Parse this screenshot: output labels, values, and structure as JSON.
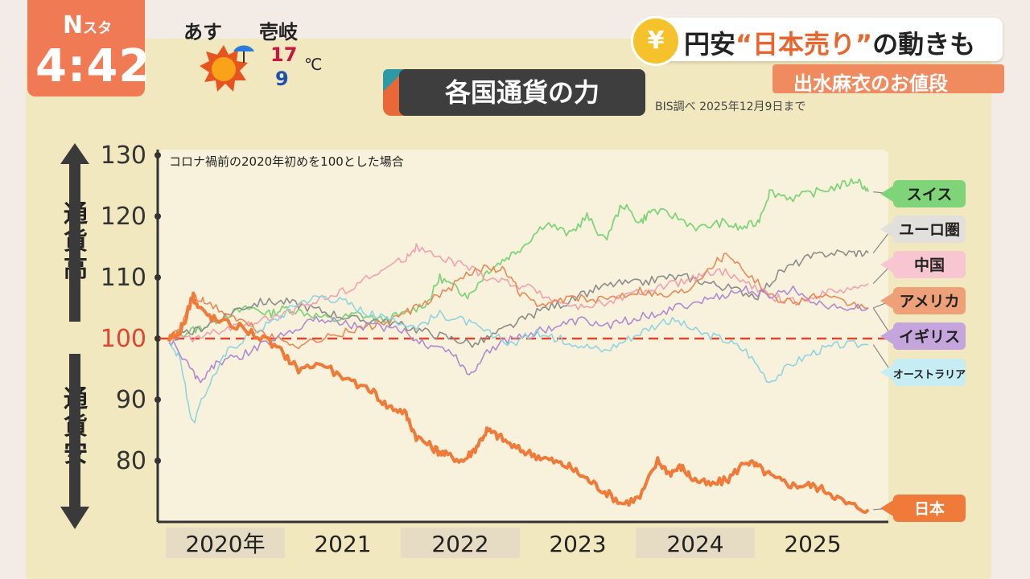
{
  "logo": {
    "brand": "N",
    "brand_sub": "スタ",
    "time": "4:42"
  },
  "weather": {
    "day": "あす",
    "place": "壱岐",
    "high": "17",
    "low": "9",
    "unit": "℃",
    "icon": "sun-with-umbrella-icon"
  },
  "headline": {
    "icon": "yen-coin-icon",
    "text_pre": "円安",
    "text_em": "“日本売り”",
    "text_post": "の動きも"
  },
  "segment": {
    "label": "出水麻衣のお値段"
  },
  "chart_title": "各国通貨の力",
  "source": "BIS調べ 2025年12月9日まで",
  "note": "コロナ禍前の2020年初めを100とした場合",
  "up_label": "通貨高",
  "down_label": "通貨安",
  "colors": {
    "accent": "#e86838",
    "baseline": "#e0452f"
  },
  "chart_data": {
    "type": "line",
    "title": "各国通貨の力",
    "ylim": [
      71,
      131
    ],
    "y_ticks": [
      80,
      90,
      100,
      110,
      120,
      130
    ],
    "baseline": 100,
    "x_range": [
      2020.0,
      2026.0
    ],
    "x_ticks": [
      "2020年",
      "2021",
      "2022",
      "2023",
      "2024",
      "2025"
    ],
    "series": [
      {
        "name": "スイス",
        "color": "#7fd47a",
        "width": 1.8,
        "x": [
          2020.0,
          2020.15,
          2020.3,
          2020.5,
          2020.7,
          2020.85,
          2021.0,
          2021.2,
          2021.4,
          2021.6,
          2021.8,
          2022.0,
          2022.2,
          2022.3,
          2022.45,
          2022.55,
          2022.7,
          2022.85,
          2023.0,
          2023.2,
          2023.4,
          2023.55,
          2023.7,
          2023.85,
          2024.0,
          2024.1,
          2024.3,
          2024.5,
          2024.7,
          2024.85,
          2025.0,
          2025.1,
          2025.3,
          2025.5,
          2025.7,
          2025.85,
          2025.94
        ],
        "values": [
          100,
          101,
          102,
          104,
          105,
          104,
          105,
          104,
          103,
          104,
          103,
          104,
          106,
          110,
          108,
          107,
          111,
          113,
          115,
          119,
          117,
          120,
          116,
          122,
          119,
          121,
          120,
          118,
          119,
          118,
          119,
          124,
          123,
          124,
          125,
          126,
          124
        ]
      },
      {
        "name": "ユーロ圏",
        "color": "#8c8c8c",
        "width": 1.6,
        "x": [
          2020.0,
          2020.2,
          2020.4,
          2020.6,
          2020.8,
          2021.0,
          2021.2,
          2021.4,
          2021.6,
          2021.8,
          2022.0,
          2022.2,
          2022.4,
          2022.6,
          2022.8,
          2023.0,
          2023.2,
          2023.4,
          2023.6,
          2023.8,
          2024.0,
          2024.2,
          2024.4,
          2024.6,
          2024.8,
          2025.0,
          2025.2,
          2025.4,
          2025.6,
          2025.8,
          2025.94
        ],
        "values": [
          100,
          101,
          103,
          105,
          106,
          106,
          105,
          104,
          103,
          103,
          102,
          101,
          100,
          99,
          101,
          103,
          105,
          106,
          108,
          109,
          109,
          110,
          110,
          109,
          108,
          107,
          111,
          113,
          114,
          114,
          114
        ]
      },
      {
        "name": "中国",
        "color": "#f2a1b0",
        "width": 1.6,
        "x": [
          2020.0,
          2020.2,
          2020.4,
          2020.6,
          2020.8,
          2021.0,
          2021.2,
          2021.4,
          2021.6,
          2021.8,
          2022.0,
          2022.1,
          2022.3,
          2022.5,
          2022.7,
          2022.9,
          2023.1,
          2023.3,
          2023.5,
          2023.7,
          2023.9,
          2024.1,
          2024.3,
          2024.5,
          2024.7,
          2024.9,
          2025.1,
          2025.3,
          2025.5,
          2025.7,
          2025.94
        ],
        "values": [
          100,
          100,
          101,
          102,
          103,
          104,
          106,
          107,
          109,
          111,
          113,
          115,
          113,
          112,
          110,
          109,
          108,
          106,
          105,
          106,
          107,
          108,
          109,
          110,
          111,
          109,
          107,
          106,
          107,
          108,
          109
        ]
      },
      {
        "name": "アメリカ",
        "color": "#e88a57",
        "width": 1.6,
        "x": [
          2020.0,
          2020.1,
          2020.2,
          2020.3,
          2020.5,
          2020.7,
          2020.9,
          2021.1,
          2021.3,
          2021.5,
          2021.7,
          2021.9,
          2022.1,
          2022.3,
          2022.5,
          2022.7,
          2022.85,
          2023.0,
          2023.2,
          2023.4,
          2023.6,
          2023.8,
          2024.0,
          2024.2,
          2024.4,
          2024.6,
          2024.75,
          2024.9,
          2025.1,
          2025.3,
          2025.5,
          2025.7,
          2025.94
        ],
        "values": [
          100,
          102,
          107,
          106,
          104,
          102,
          100,
          99,
          100,
          101,
          102,
          103,
          105,
          107,
          110,
          112,
          111,
          107,
          105,
          107,
          106,
          107,
          108,
          107,
          108,
          112,
          114,
          111,
          107,
          106,
          107,
          106,
          105
        ]
      },
      {
        "name": "イギリス",
        "color": "#b08ad0",
        "width": 1.6,
        "x": [
          2020.0,
          2020.15,
          2020.25,
          2020.4,
          2020.6,
          2020.8,
          2021.0,
          2021.2,
          2021.4,
          2021.6,
          2021.8,
          2022.0,
          2022.2,
          2022.4,
          2022.55,
          2022.7,
          2022.9,
          2023.1,
          2023.3,
          2023.5,
          2023.7,
          2023.9,
          2024.1,
          2024.3,
          2024.5,
          2024.7,
          2024.9,
          2025.1,
          2025.3,
          2025.5,
          2025.7,
          2025.94
        ],
        "values": [
          100,
          96,
          93,
          96,
          97,
          99,
          101,
          103,
          103,
          102,
          102,
          101,
          99,
          98,
          94,
          98,
          100,
          101,
          102,
          103,
          102,
          103,
          104,
          105,
          106,
          107,
          108,
          107,
          108,
          106,
          105,
          105
        ]
      },
      {
        "name": "オーストラリア",
        "color": "#8fd4e2",
        "width": 1.6,
        "x": [
          2020.0,
          2020.1,
          2020.2,
          2020.35,
          2020.5,
          2020.7,
          2020.9,
          2021.1,
          2021.3,
          2021.5,
          2021.7,
          2021.9,
          2022.1,
          2022.3,
          2022.5,
          2022.7,
          2022.9,
          2023.1,
          2023.3,
          2023.5,
          2023.7,
          2023.9,
          2024.1,
          2024.3,
          2024.5,
          2024.7,
          2024.9,
          2025.1,
          2025.3,
          2025.5,
          2025.7,
          2025.94
        ],
        "values": [
          100,
          96,
          86,
          93,
          98,
          101,
          103,
          106,
          107,
          106,
          104,
          103,
          102,
          104,
          103,
          101,
          99,
          101,
          100,
          99,
          98,
          100,
          102,
          103,
          101,
          100,
          98,
          93,
          96,
          98,
          99,
          99
        ]
      },
      {
        "name": "日本",
        "color": "#f07a3a",
        "width": 4,
        "x": [
          2020.0,
          2020.1,
          2020.2,
          2020.25,
          2020.4,
          2020.6,
          2020.8,
          2020.95,
          2021.1,
          2021.3,
          2021.5,
          2021.7,
          2021.85,
          2022.0,
          2022.1,
          2022.25,
          2022.35,
          2022.5,
          2022.6,
          2022.7,
          2022.8,
          2022.95,
          2023.1,
          2023.25,
          2023.4,
          2023.55,
          2023.7,
          2023.85,
          2024.0,
          2024.15,
          2024.25,
          2024.35,
          2024.45,
          2024.6,
          2024.75,
          2024.9,
          2025.0,
          2025.15,
          2025.3,
          2025.45,
          2025.6,
          2025.75,
          2025.94
        ],
        "values": [
          100,
          101,
          107,
          105,
          103,
          102,
          100,
          98,
          95,
          96,
          93,
          92,
          89,
          88,
          84,
          82,
          81,
          80,
          82,
          85,
          84,
          82,
          81,
          80,
          79,
          77,
          75,
          73,
          74,
          80,
          78,
          79,
          77,
          76,
          77,
          80,
          79,
          77,
          76,
          76,
          75,
          73,
          72
        ]
      }
    ]
  }
}
